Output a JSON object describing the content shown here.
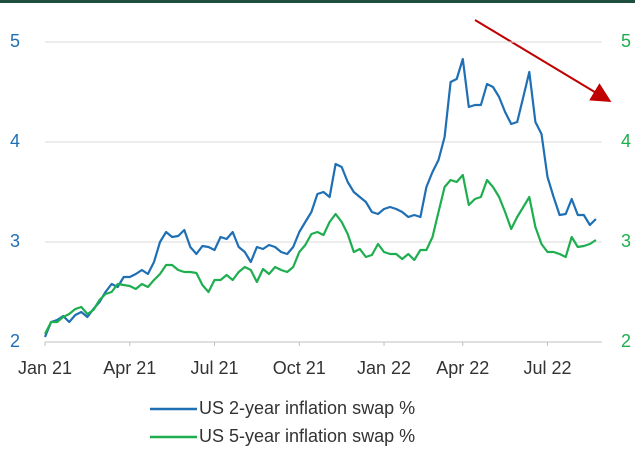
{
  "chart_data": {
    "type": "line",
    "x": [
      0,
      1,
      2,
      3,
      4,
      5,
      6,
      7,
      8,
      9,
      10,
      11,
      12,
      13,
      14,
      15,
      16,
      17,
      18,
      19,
      20,
      21,
      22,
      23,
      24,
      25,
      26,
      27,
      28,
      29,
      30,
      31,
      32,
      33,
      34,
      35,
      36,
      37,
      38,
      39,
      40,
      41,
      42,
      43,
      44,
      45,
      46,
      47,
      48,
      49,
      50,
      51,
      52,
      53,
      54,
      55,
      56,
      57,
      58,
      59,
      60,
      61,
      62,
      63,
      64,
      65,
      66,
      67,
      68,
      69,
      70,
      71,
      72,
      73,
      74,
      75,
      76,
      77,
      78,
      79,
      80,
      81,
      82,
      83,
      84,
      85,
      86,
      87,
      88,
      89,
      90,
      91
    ],
    "series": [
      {
        "name": "US 2-year inflation swap %",
        "color": "#1f6fb5",
        "axis": "y",
        "values": [
          2.05,
          2.2,
          2.22,
          2.26,
          2.2,
          2.27,
          2.3,
          2.25,
          2.33,
          2.4,
          2.5,
          2.58,
          2.55,
          2.65,
          2.65,
          2.68,
          2.72,
          2.68,
          2.8,
          3.0,
          3.1,
          3.05,
          3.06,
          3.12,
          2.95,
          2.88,
          2.96,
          2.95,
          2.92,
          3.05,
          3.03,
          3.1,
          2.95,
          2.9,
          2.8,
          2.95,
          2.93,
          2.97,
          2.95,
          2.9,
          2.88,
          2.95,
          3.1,
          3.2,
          3.3,
          3.48,
          3.5,
          3.45,
          3.78,
          3.75,
          3.6,
          3.5,
          3.45,
          3.4,
          3.3,
          3.28,
          3.33,
          3.35,
          3.33,
          3.3,
          3.25,
          3.27,
          3.25,
          3.55,
          3.7,
          3.82,
          4.05,
          4.6,
          4.63,
          4.83,
          4.35,
          4.37,
          4.37,
          4.58,
          4.55,
          4.45,
          4.3,
          4.18,
          4.2,
          4.45,
          4.7,
          4.2,
          4.08,
          3.65,
          3.45,
          3.27,
          3.28,
          3.43,
          3.27,
          3.27,
          3.17,
          3.23
        ]
      },
      {
        "name": "US 5-year inflation swap %",
        "color": "#1fae4f",
        "axis": "y2",
        "values": [
          2.08,
          2.2,
          2.2,
          2.25,
          2.28,
          2.33,
          2.35,
          2.28,
          2.32,
          2.42,
          2.48,
          2.5,
          2.58,
          2.57,
          2.56,
          2.53,
          2.58,
          2.55,
          2.62,
          2.68,
          2.77,
          2.77,
          2.72,
          2.7,
          2.7,
          2.69,
          2.57,
          2.5,
          2.62,
          2.62,
          2.67,
          2.62,
          2.7,
          2.75,
          2.72,
          2.6,
          2.73,
          2.68,
          2.75,
          2.72,
          2.7,
          2.75,
          2.9,
          2.97,
          3.08,
          3.1,
          3.07,
          3.2,
          3.28,
          3.2,
          3.08,
          2.9,
          2.93,
          2.85,
          2.87,
          2.98,
          2.9,
          2.88,
          2.88,
          2.83,
          2.88,
          2.82,
          2.92,
          2.92,
          3.05,
          3.3,
          3.55,
          3.62,
          3.6,
          3.67,
          3.37,
          3.43,
          3.45,
          3.62,
          3.55,
          3.45,
          3.3,
          3.13,
          3.25,
          3.35,
          3.45,
          3.15,
          2.98,
          2.9,
          2.9,
          2.88,
          2.85,
          3.05,
          2.95,
          2.96,
          2.98,
          3.02
        ]
      }
    ],
    "xlim": [
      0,
      92
    ],
    "xticks": [
      {
        "value": 0,
        "label": "Jan 21"
      },
      {
        "value": 14,
        "label": "Apr 21"
      },
      {
        "value": 28,
        "label": "Jul 21"
      },
      {
        "value": 42,
        "label": "Oct 21"
      },
      {
        "value": 56,
        "label": "Jan 22"
      },
      {
        "value": 69,
        "label": "Apr 22"
      },
      {
        "value": 83,
        "label": "Jul 22"
      }
    ],
    "ylim": [
      2,
      5
    ],
    "yticks": [
      2,
      3,
      4,
      5
    ],
    "y2lim": [
      2,
      5
    ],
    "y2ticks": [
      2,
      3,
      4,
      5
    ],
    "grid": true
  }
}
